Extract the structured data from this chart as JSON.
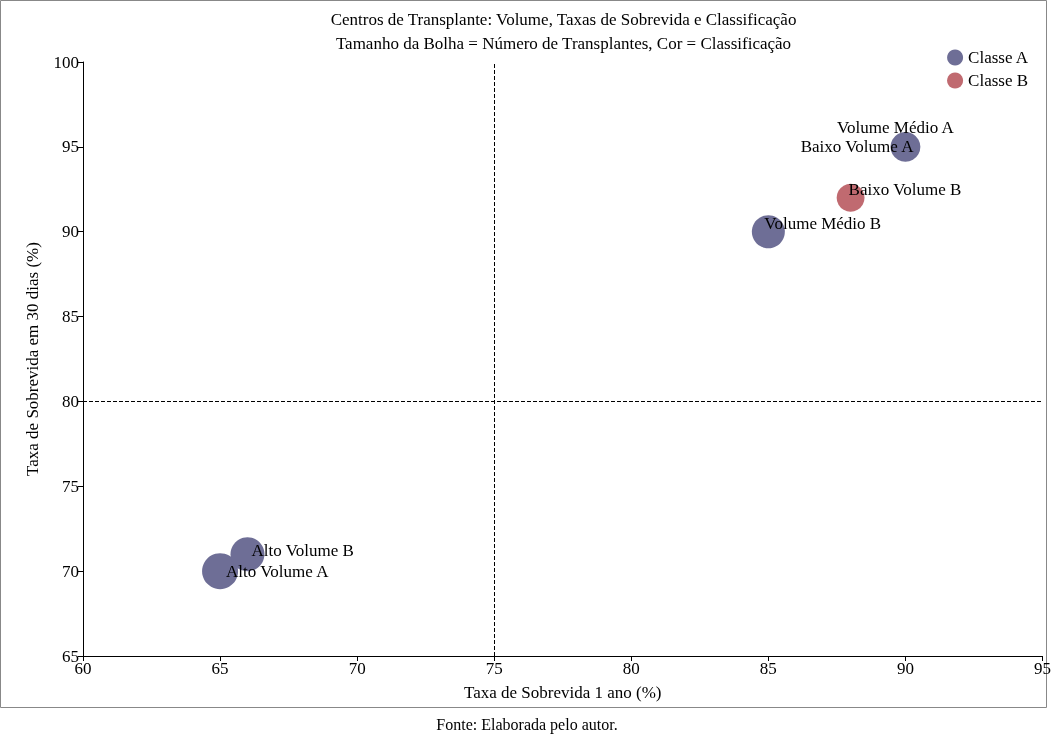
{
  "chart_data": {
    "type": "bubble",
    "title": "Centros de Transplante: Volume, Taxas de Sobrevida e Classificação",
    "subtitle": "Tamanho da Bolha = Número de Transplantes, Cor = Classificação",
    "xlabel": "Taxa de Sobrevida 1 ano (%)",
    "ylabel": "Taxa de Sobrevida em 30 dias (%)",
    "series": [
      {
        "name": "Classe A",
        "color": "#6e6e96",
        "x": [
          65,
          66,
          85,
          90
        ],
        "values": [
          70,
          71,
          90,
          95
        ],
        "sizes": [
          1,
          0.89,
          0.84,
          0.69
        ]
      },
      {
        "name": "Classe B",
        "color": "#c06a70",
        "x": [
          88
        ],
        "values": [
          92
        ],
        "sizes": [
          0.6
        ]
      }
    ],
    "xlim": [
      60,
      95
    ],
    "xticks": [
      60,
      65,
      70,
      75,
      80,
      85,
      90,
      95
    ],
    "ylim": [
      65,
      100
    ],
    "yticks": [
      65,
      70,
      75,
      80,
      85,
      90,
      95,
      100
    ],
    "ref_lines": [
      {
        "axis": "x",
        "value": 75,
        "color": "#000000",
        "line_style": "dashed"
      },
      {
        "axis": "y",
        "value": 80,
        "color": "#000000",
        "line_style": "dashed"
      }
    ],
    "annotations": [
      {
        "text": "Alto Volume A",
        "x": 65,
        "y": 70
      },
      {
        "text": "Alto Volume B",
        "x": 66,
        "y": 71
      },
      {
        "text": "Volume Médio B",
        "x": 85,
        "y": 90
      },
      {
        "text": "Baixo Volume B",
        "x": 88,
        "y": 92
      },
      {
        "text": "Volume Médio A",
        "x": 90,
        "y": 95
      },
      {
        "text": "Baixo Volume A",
        "x": 90,
        "y": 95
      },
      "Fonte: Elaborada pelo autor."
    ],
    "grid": false,
    "legend": "top right",
    "marker": "circle"
  }
}
